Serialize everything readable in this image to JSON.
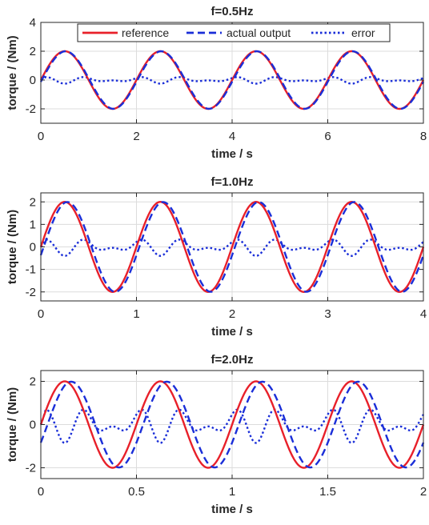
{
  "colors": {
    "reference": "#e8202a",
    "actual_output": "#1a2ed8",
    "error": "#1a2ed8",
    "grid": "#dcdcdc",
    "axis": "#262626"
  },
  "legend": {
    "entries": [
      "reference",
      "actual output",
      "error"
    ],
    "placement": "top, inside first panel"
  },
  "chart_data": [
    {
      "type": "line",
      "title": "f=0.5Hz",
      "xlabel": "time / s",
      "ylabel": "torque / (Nm)",
      "xlim": [
        0,
        8
      ],
      "ylim": [
        -3,
        4
      ],
      "xticks": [
        0,
        2,
        4,
        6,
        8
      ],
      "xtick_labels": [
        "0",
        "2",
        "4",
        "6",
        "8"
      ],
      "yticks": [
        -2,
        0,
        2,
        4
      ],
      "ytick_labels": [
        "-2",
        "0",
        "2",
        "4"
      ],
      "grid": true,
      "frequency_hz": 0.5,
      "amplitude_nm": 2,
      "phase_lag_s": 0.02,
      "series": [
        {
          "name": "reference",
          "style": "solid",
          "equation": "2*sin(2*pi*f*t)"
        },
        {
          "name": "actual output",
          "style": "dashed",
          "equation": "2*sin(2*pi*f*(t-lag))"
        },
        {
          "name": "error",
          "style": "dotted",
          "peak_nm": 0.25
        }
      ]
    },
    {
      "type": "line",
      "title": "f=1.0Hz",
      "xlabel": "time / s",
      "ylabel": "torque / (Nm)",
      "xlim": [
        0,
        4
      ],
      "ylim": [
        -2.4,
        2.4
      ],
      "xticks": [
        0,
        1,
        2,
        3,
        4
      ],
      "xtick_labels": [
        "0",
        "1",
        "2",
        "3",
        "4"
      ],
      "yticks": [
        -2,
        -1,
        0,
        1,
        2
      ],
      "ytick_labels": [
        "-2",
        "-1",
        "0",
        "1",
        "2"
      ],
      "grid": true,
      "frequency_hz": 1.0,
      "amplitude_nm": 2,
      "phase_lag_s": 0.03,
      "series": [
        {
          "name": "reference",
          "style": "solid",
          "equation": "2*sin(2*pi*f*t)"
        },
        {
          "name": "actual output",
          "style": "dashed",
          "equation": "2*sin(2*pi*f*(t-lag))"
        },
        {
          "name": "error",
          "style": "dotted",
          "peak_nm": 0.4
        }
      ]
    },
    {
      "type": "line",
      "title": "f=2.0Hz",
      "xlabel": "time / s",
      "ylabel": "torque / (Nm)",
      "xlim": [
        0,
        2
      ],
      "ylim": [
        -2.5,
        2.5
      ],
      "xticks": [
        0,
        0.5,
        1,
        1.5,
        2
      ],
      "xtick_labels": [
        "0",
        "0.5",
        "1",
        "1.5",
        "2"
      ],
      "yticks": [
        -2,
        0,
        2
      ],
      "ytick_labels": [
        "-2",
        "0",
        "2"
      ],
      "grid": true,
      "frequency_hz": 2.0,
      "amplitude_nm": 2,
      "phase_lag_s": 0.035,
      "series": [
        {
          "name": "reference",
          "style": "solid",
          "equation": "2*sin(2*pi*f*t)"
        },
        {
          "name": "actual output",
          "style": "dashed",
          "equation": "2*sin(2*pi*f*(t-lag))"
        },
        {
          "name": "error",
          "style": "dotted",
          "peak_nm": 0.85
        }
      ]
    }
  ]
}
